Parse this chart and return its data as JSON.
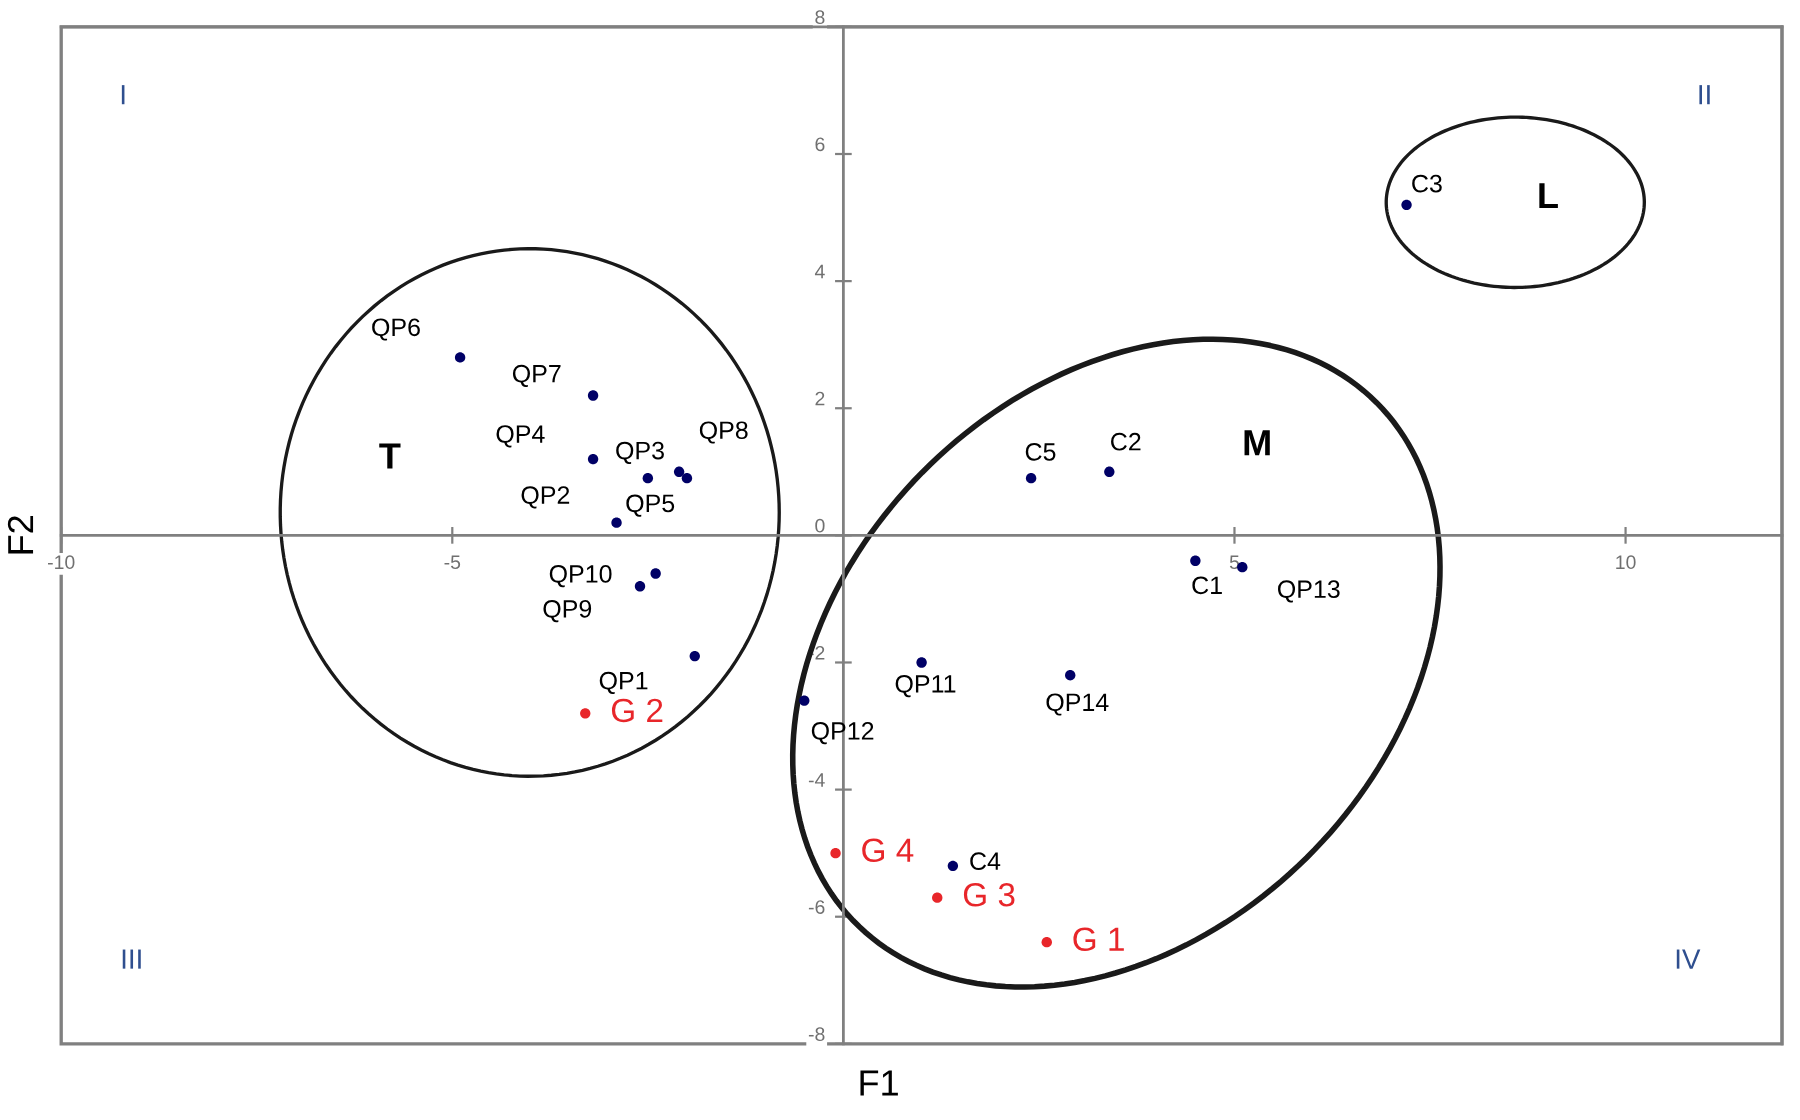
{
  "chart_data": {
    "type": "scatter",
    "xlabel": "F1",
    "ylabel": "F2",
    "xlim": [
      -10,
      12
    ],
    "ylim": [
      -8,
      8
    ],
    "xticks": [
      -10,
      -5,
      5,
      10
    ],
    "yticks": [
      -8,
      -6,
      -4,
      -2,
      0,
      2,
      4,
      6,
      8
    ],
    "grid": false,
    "legend": false,
    "marker": "circle",
    "series": [
      {
        "color": "#000066",
        "x": [
          -1.9,
          -2.9,
          -2.5,
          -3.2,
          -2.0,
          -4.9,
          -3.2,
          -2.1,
          -2.6,
          -2.4,
          1.0,
          -0.5,
          5.1,
          2.9,
          4.5,
          3.4,
          7.2,
          1.4,
          2.4
        ],
        "values": [
          -1.9,
          0.2,
          0.9,
          1.2,
          0.9,
          2.8,
          2.2,
          1.0,
          -0.8,
          -0.6,
          -2.0,
          -2.6,
          -0.5,
          -2.2,
          -0.4,
          1.0,
          5.2,
          -5.2,
          0.9
        ]
      },
      {
        "color": "#e8262a",
        "x": [
          2.6,
          -3.3,
          1.2,
          -0.1
        ],
        "values": [
          -6.4,
          -2.8,
          -5.7,
          -5.0
        ],
        "value_labels": [
          "G 1",
          "G 2",
          "G 3",
          "G 4"
        ]
      }
    ],
    "annotations": [
      "QP1",
      "QP2",
      "QP3",
      "QP4",
      "QP5",
      "QP6",
      "QP7",
      "QP8",
      "QP9",
      "QP10",
      "QP11",
      "QP12",
      "QP13",
      "QP14",
      "C1",
      "C2",
      "C3",
      "C4",
      "C5",
      "T",
      "M",
      "L",
      "I",
      "II",
      "III",
      "IV"
    ]
  }
}
